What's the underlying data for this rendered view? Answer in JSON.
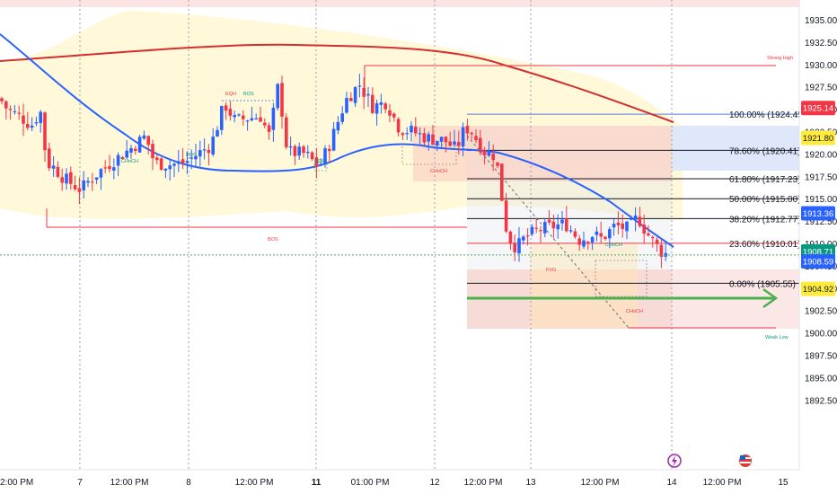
{
  "chart_data": {
    "type": "candlestick",
    "y_axis": {
      "range": [
        1891.6,
        1937.7
      ],
      "ticks": [
        "1935.00",
        "1932.50",
        "1930.00",
        "1927.50",
        "1925.00",
        "1922.50",
        "1920.00",
        "1917.50",
        "1915.00",
        "1912.50",
        "1910.00",
        "1907.50",
        "1905.00",
        "1902.50",
        "1900.00",
        "1897.50",
        "1895.00",
        "1892.50"
      ]
    },
    "x_axis": {
      "ticks": [
        "2:00 PM",
        "7",
        "12:00 PM",
        "8",
        "12:00 PM",
        "11",
        "01:00 PM",
        "12",
        "12:00 PM",
        "13",
        "12:00 PM",
        "14",
        "12:00 PM",
        "15"
      ],
      "day_boundaries": [
        "7",
        "8",
        "11",
        "12",
        "13",
        "14"
      ]
    },
    "price_tags": [
      {
        "label": "1925.14",
        "value": 1925.14,
        "bg": "#f23645",
        "fg": "#ffffff"
      },
      {
        "label": "1921.80",
        "value": 1921.8,
        "bg": "#ffeb3b",
        "fg": "#131722"
      },
      {
        "label": "1913.36",
        "value": 1913.36,
        "bg": "#2962ff",
        "fg": "#ffffff"
      },
      {
        "label": "1908.71",
        "value": 1908.71,
        "bg": "#089981",
        "fg": "#ffffff"
      },
      {
        "label": "1908.59",
        "value": 1908.59,
        "bg": "#2962ff",
        "fg": "#ffffff"
      },
      {
        "label": "1904.92",
        "value": 1904.92,
        "bg": "#ffeb3b",
        "fg": "#131722"
      }
    ],
    "fib_levels": [
      {
        "label": "100.00% (1924.45)",
        "value": 1924.45,
        "color": "#5b7bd6"
      },
      {
        "label": "78.60% (1920.41)",
        "value": 1920.41,
        "color": "#131722"
      },
      {
        "label": "61.80% (1917.23)",
        "value": 1917.23,
        "color": "#131722"
      },
      {
        "label": "50.00% (1915.00)",
        "value": 1915.0,
        "color": "#131722"
      },
      {
        "label": "38.20% (1912.77)",
        "value": 1912.77,
        "color": "#131722"
      },
      {
        "label": "23.60% (1910.01)",
        "value": 1910.01,
        "color": "#f23645"
      },
      {
        "label": "0.00% (1905.55)",
        "value": 1905.55,
        "color": "#131722"
      }
    ],
    "annotations": [
      "Strong High",
      "Weak Low",
      "BOS",
      "CHoCH",
      "EQH",
      "FVG"
    ],
    "lines": [
      {
        "name": "",
        "color": "#d32f2f"
      },
      {
        "name": "",
        "color": "#2962ff"
      }
    ],
    "current_price_line": 1908.71,
    "colors": {
      "up": "#2962ff",
      "down": "#f23645",
      "green": "#4caf50"
    }
  }
}
